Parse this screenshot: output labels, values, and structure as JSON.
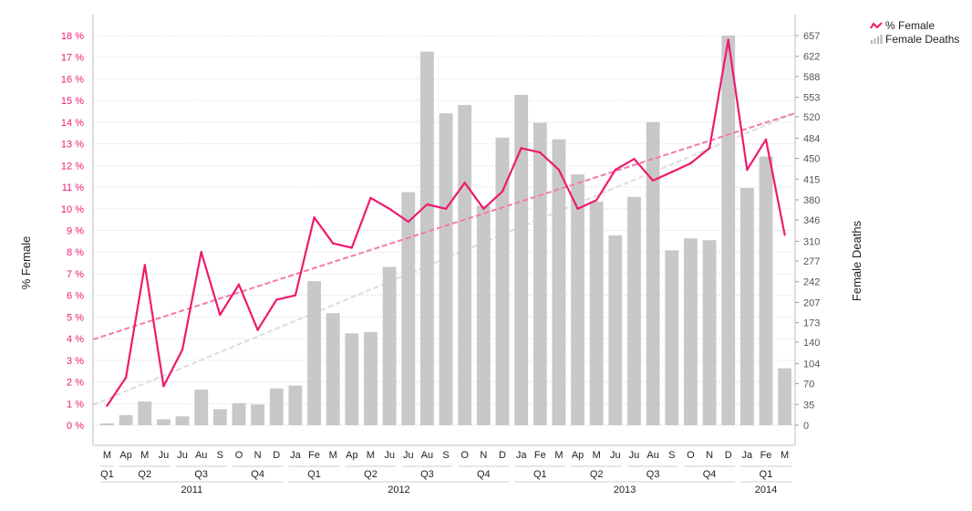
{
  "chart_data": {
    "type": "combo bar + line",
    "title": "",
    "legend": [
      {
        "name": "% Female",
        "kind": "line",
        "color": "#ee1a6f"
      },
      {
        "name": "Female Deaths",
        "kind": "bar",
        "color": "#c8c8c8"
      }
    ],
    "legend_position": "top-right",
    "y_left": {
      "label": "% Female",
      "ticks": [
        "0 %",
        "1 %",
        "2 %",
        "3 %",
        "4 %",
        "5 %",
        "6 %",
        "7 %",
        "8 %",
        "9 %",
        "10 %",
        "11 %",
        "12 %",
        "13 %",
        "14 %",
        "15 %",
        "16 %",
        "17 %",
        "18 %"
      ],
      "range": [
        0,
        18
      ],
      "color": "#ee1a6f"
    },
    "y_right": {
      "label": "Female Deaths",
      "ticks": [
        "0",
        "35",
        "70",
        "104",
        "140",
        "173",
        "207",
        "242",
        "277",
        "310",
        "346",
        "380",
        "415",
        "450",
        "484",
        "520",
        "553",
        "588",
        "622",
        "657"
      ],
      "range": [
        0,
        657
      ]
    },
    "grid": true,
    "x_months": [
      "M",
      "Ap",
      "M",
      "Ju",
      "Ju",
      "Au",
      "S",
      "O",
      "N",
      "D",
      "Ja",
      "Fe",
      "M",
      "Ap",
      "M",
      "Ju",
      "Ju",
      "Au",
      "S",
      "O",
      "N",
      "D",
      "Ja",
      "Fe",
      "M",
      "Ap",
      "M",
      "Ju",
      "Ju",
      "Au",
      "S",
      "O",
      "N",
      "D",
      "Ja",
      "Fe",
      "M"
    ],
    "x_quarters": [
      {
        "label": "Q1",
        "first": 0,
        "last": 0
      },
      {
        "label": "Q2",
        "first": 1,
        "last": 3
      },
      {
        "label": "Q3",
        "first": 4,
        "last": 6
      },
      {
        "label": "Q4",
        "first": 7,
        "last": 9
      },
      {
        "label": "Q1",
        "first": 10,
        "last": 12
      },
      {
        "label": "Q2",
        "first": 13,
        "last": 15
      },
      {
        "label": "Q3",
        "first": 16,
        "last": 18
      },
      {
        "label": "Q4",
        "first": 19,
        "last": 21
      },
      {
        "label": "Q1",
        "first": 22,
        "last": 24
      },
      {
        "label": "Q2",
        "first": 25,
        "last": 27
      },
      {
        "label": "Q3",
        "first": 28,
        "last": 30
      },
      {
        "label": "Q4",
        "first": 31,
        "last": 33
      },
      {
        "label": "Q1",
        "first": 34,
        "last": 36
      }
    ],
    "x_years": [
      {
        "label": "2011",
        "first": 0,
        "last": 9
      },
      {
        "label": "2012",
        "first": 10,
        "last": 21
      },
      {
        "label": "2013",
        "first": 22,
        "last": 33
      },
      {
        "label": "2014",
        "first": 34,
        "last": 36
      }
    ],
    "series": [
      {
        "name": "Female Deaths",
        "type": "bar",
        "color": "#c8c8c8",
        "values": [
          3,
          17,
          40,
          10,
          15,
          60,
          27,
          37,
          35,
          62,
          67,
          243,
          189,
          155,
          157,
          267,
          393,
          630,
          526,
          540,
          370,
          485,
          557,
          510,
          482,
          423,
          377,
          320,
          385,
          511,
          295,
          315,
          312,
          657,
          400,
          453,
          96
        ]
      },
      {
        "name": "% Female",
        "type": "line",
        "color": "#ee1a6f",
        "values": [
          0.9,
          2.2,
          7.4,
          1.8,
          3.5,
          8.0,
          5.1,
          6.5,
          4.4,
          5.8,
          6.0,
          9.6,
          8.4,
          8.2,
          10.5,
          10.0,
          9.4,
          10.2,
          10.0,
          11.2,
          10.0,
          10.8,
          12.8,
          12.6,
          11.8,
          10.0,
          10.4,
          11.8,
          12.3,
          11.3,
          11.7,
          12.1,
          12.8,
          17.8,
          11.8,
          13.2,
          8.8
        ]
      }
    ],
    "trendlines": [
      {
        "series": "% Female",
        "style": "dashed",
        "color": "#f47aa9"
      },
      {
        "series": "Female Deaths",
        "style": "dashed",
        "color": "#dddddd"
      }
    ]
  }
}
